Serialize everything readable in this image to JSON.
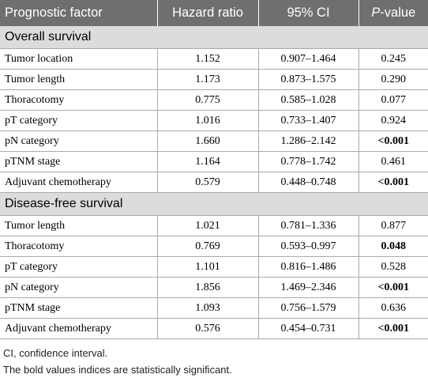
{
  "header": {
    "col1": "Prognostic factor",
    "col2": "Hazard ratio",
    "col3": "95% CI",
    "col4_italic": "P",
    "col4_rest": "-value"
  },
  "sections": [
    {
      "title": "Overall survival",
      "rows": [
        {
          "factor": "Tumor location",
          "hr": "1.152",
          "ci": "0.907–1.464",
          "p": "0.245",
          "sig": false
        },
        {
          "factor": "Tumor length",
          "hr": "1.173",
          "ci": "0.873–1.575",
          "p": "0.290",
          "sig": false
        },
        {
          "factor": "Thoracotomy",
          "hr": "0.775",
          "ci": "0.585–1.028",
          "p": "0.077",
          "sig": false
        },
        {
          "factor": "pT category",
          "hr": "1.016",
          "ci": "0.733–1.407",
          "p": "0.924",
          "sig": false
        },
        {
          "factor": "pN category",
          "hr": "1.660",
          "ci": "1.286–2.142",
          "p": "<0.001",
          "sig": true
        },
        {
          "factor": "pTNM stage",
          "hr": "1.164",
          "ci": "0.778–1.742",
          "p": "0.461",
          "sig": false
        },
        {
          "factor": "Adjuvant chemotherapy",
          "hr": "0.579",
          "ci": "0.448–0.748",
          "p": "<0.001",
          "sig": true
        }
      ]
    },
    {
      "title": "Disease-free survival",
      "rows": [
        {
          "factor": "Tumor length",
          "hr": "1.021",
          "ci": "0.781–1.336",
          "p": "0.877",
          "sig": false
        },
        {
          "factor": "Thoracotomy",
          "hr": "0.769",
          "ci": "0.593–0.997",
          "p": "0.048",
          "sig": true
        },
        {
          "factor": "pT category",
          "hr": "1.101",
          "ci": "0.816–1.486",
          "p": "0.528",
          "sig": false
        },
        {
          "factor": "pN category",
          "hr": "1.856",
          "ci": "1.469–2.346",
          "p": "<0.001",
          "sig": true
        },
        {
          "factor": "pTNM stage",
          "hr": "1.093",
          "ci": "0.756–1.579",
          "p": "0.636",
          "sig": false
        },
        {
          "factor": "Adjuvant chemotherapy",
          "hr": "0.576",
          "ci": "0.454–0.731",
          "p": "<0.001",
          "sig": true
        }
      ]
    }
  ],
  "footnotes": [
    "CI, confidence interval.",
    "The bold values indices are statistically significant."
  ]
}
